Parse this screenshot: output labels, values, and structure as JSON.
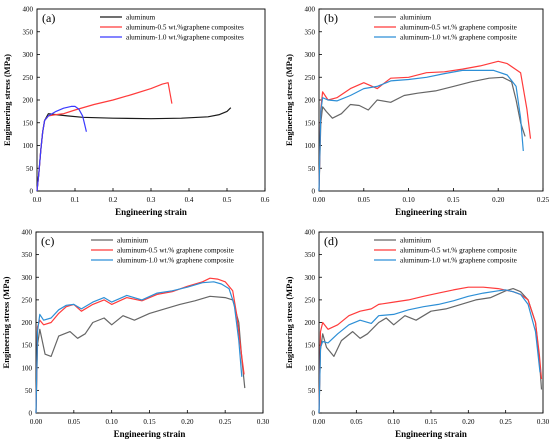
{
  "colors": {
    "black": "#1a1a1a",
    "gray": "#666666",
    "red": "#ff3b3b",
    "blue": "#3a3aff",
    "cyan": "#2d8fd6"
  },
  "chart_data": [
    {
      "type": "line",
      "panel_label": "(a)",
      "xlabel": "Engineering strain",
      "ylabel": "Engineering stress (MPa)",
      "xlim": [
        0,
        0.6
      ],
      "ylim": [
        0,
        400
      ],
      "xticks": [
        0,
        0.1,
        0.2,
        0.3,
        0.4,
        0.5,
        0.6
      ],
      "yticks": [
        0,
        50,
        100,
        150,
        200,
        250,
        300,
        350,
        400
      ],
      "xtick_labels": [
        "0.0",
        "0.1",
        "0.2",
        "0.3",
        "0.4",
        "0.5",
        "0.6"
      ],
      "ytick_labels": [
        "0",
        "50",
        "100",
        "150",
        "200",
        "250",
        "300",
        "350",
        "400"
      ],
      "legend_position": "top-center",
      "series": [
        {
          "name": "aluminum",
          "color": "#1a1a1a",
          "x": [
            0,
            0.005,
            0.01,
            0.015,
            0.02,
            0.03,
            0.05,
            0.08,
            0.12,
            0.2,
            0.3,
            0.38,
            0.45,
            0.48,
            0.5,
            0.51
          ],
          "y": [
            0,
            40,
            90,
            130,
            155,
            170,
            168,
            165,
            162,
            160,
            159,
            160,
            163,
            168,
            175,
            183
          ]
        },
        {
          "name": "aluminum-0.5 wt.%graphene composites",
          "color": "#ff3b3b",
          "x": [
            0,
            0.005,
            0.01,
            0.015,
            0.02,
            0.03,
            0.05,
            0.07,
            0.1,
            0.15,
            0.2,
            0.25,
            0.3,
            0.33,
            0.345,
            0.35,
            0.355
          ],
          "y": [
            0,
            40,
            90,
            130,
            155,
            165,
            168,
            170,
            178,
            190,
            200,
            212,
            225,
            235,
            238,
            215,
            192
          ]
        },
        {
          "name": "aluminum-1.0 wt.%graphene composites",
          "color": "#3a3aff",
          "x": [
            0,
            0.005,
            0.01,
            0.015,
            0.02,
            0.03,
            0.05,
            0.07,
            0.09,
            0.1,
            0.11,
            0.12,
            0.125,
            0.13
          ],
          "y": [
            0,
            40,
            90,
            130,
            155,
            165,
            175,
            182,
            186,
            186,
            180,
            165,
            148,
            130
          ]
        }
      ]
    },
    {
      "type": "line",
      "panel_label": "(b)",
      "xlabel": "Engineering strain",
      "ylabel": "Engineering stress (MPa)",
      "xlim": [
        0,
        0.25
      ],
      "ylim": [
        0,
        400
      ],
      "xticks": [
        0,
        0.05,
        0.1,
        0.15,
        0.2,
        0.25
      ],
      "yticks": [
        0,
        50,
        100,
        150,
        200,
        250,
        300,
        350,
        400
      ],
      "xtick_labels": [
        "0.00",
        "0.05",
        "0.10",
        "0.15",
        "0.20",
        "0.25"
      ],
      "ytick_labels": [
        "0",
        "50",
        "100",
        "150",
        "200",
        "250",
        "300",
        "350",
        "400"
      ],
      "legend_position": "top-center",
      "series": [
        {
          "name": "aluminium",
          "color": "#666666",
          "x": [
            0,
            0.002,
            0.004,
            0.008,
            0.015,
            0.025,
            0.035,
            0.045,
            0.055,
            0.065,
            0.08,
            0.095,
            0.11,
            0.13,
            0.15,
            0.17,
            0.19,
            0.205,
            0.215,
            0.22,
            0.225,
            0.23
          ],
          "y": [
            0,
            150,
            185,
            175,
            160,
            170,
            190,
            188,
            178,
            200,
            195,
            210,
            215,
            220,
            230,
            240,
            248,
            250,
            240,
            200,
            150,
            120
          ]
        },
        {
          "name": "aluminum-0.5 wt.% graphene composite",
          "color": "#ff3b3b",
          "x": [
            0,
            0.002,
            0.004,
            0.01,
            0.02,
            0.035,
            0.05,
            0.065,
            0.08,
            0.1,
            0.12,
            0.14,
            0.16,
            0.18,
            0.2,
            0.21,
            0.225,
            0.232,
            0.236
          ],
          "y": [
            0,
            180,
            218,
            200,
            205,
            225,
            238,
            225,
            248,
            250,
            260,
            262,
            268,
            275,
            285,
            280,
            260,
            180,
            115
          ]
        },
        {
          "name": "aluminum-1.0 wt.% graphene composite",
          "color": "#2d8fd6",
          "x": [
            0,
            0.002,
            0.004,
            0.01,
            0.02,
            0.035,
            0.05,
            0.065,
            0.08,
            0.1,
            0.12,
            0.14,
            0.16,
            0.18,
            0.195,
            0.21,
            0.22,
            0.225,
            0.228
          ],
          "y": [
            0,
            175,
            205,
            200,
            198,
            210,
            225,
            230,
            242,
            245,
            250,
            258,
            265,
            265,
            265,
            255,
            230,
            160,
            88
          ]
        }
      ]
    },
    {
      "type": "line",
      "panel_label": "(c)",
      "xlabel": "Engineering strain",
      "ylabel": "Engineering stress (MPa)",
      "xlim": [
        0,
        0.3
      ],
      "ylim": [
        0,
        400
      ],
      "xticks": [
        0,
        0.05,
        0.1,
        0.15,
        0.2,
        0.25,
        0.3
      ],
      "yticks": [
        0,
        50,
        100,
        150,
        200,
        250,
        300,
        350,
        400
      ],
      "xtick_labels": [
        "0.00",
        "0.05",
        "0.10",
        "0.15",
        "0.20",
        "0.25",
        "0.30"
      ],
      "ytick_labels": [
        "0",
        "50",
        "100",
        "150",
        "200",
        "250",
        "300",
        "350",
        "400"
      ],
      "legend_position": "top-center",
      "series": [
        {
          "name": "aluminium",
          "color": "#666666",
          "x": [
            0,
            0.002,
            0.005,
            0.012,
            0.02,
            0.03,
            0.045,
            0.055,
            0.065,
            0.075,
            0.09,
            0.1,
            0.115,
            0.13,
            0.15,
            0.17,
            0.19,
            0.21,
            0.23,
            0.25,
            0.26,
            0.268,
            0.272,
            0.276
          ],
          "y": [
            0,
            150,
            185,
            130,
            125,
            170,
            180,
            165,
            175,
            200,
            210,
            195,
            215,
            205,
            220,
            230,
            240,
            248,
            258,
            255,
            250,
            200,
            120,
            55
          ]
        },
        {
          "name": "aluminum-0.5 wt.% graphene composite",
          "color": "#ff3b3b",
          "x": [
            0,
            0.002,
            0.005,
            0.01,
            0.02,
            0.03,
            0.04,
            0.05,
            0.06,
            0.075,
            0.09,
            0.1,
            0.12,
            0.14,
            0.16,
            0.18,
            0.2,
            0.22,
            0.23,
            0.24,
            0.25,
            0.26,
            0.265,
            0.27,
            0.275
          ],
          "y": [
            0,
            190,
            205,
            195,
            200,
            220,
            235,
            240,
            225,
            240,
            250,
            240,
            255,
            248,
            262,
            268,
            280,
            290,
            298,
            296,
            290,
            270,
            220,
            150,
            85
          ]
        },
        {
          "name": "aluminum-1.0 wt.% graphene composite",
          "color": "#2d8fd6",
          "x": [
            0,
            0.002,
            0.005,
            0.01,
            0.02,
            0.03,
            0.04,
            0.05,
            0.06,
            0.075,
            0.09,
            0.1,
            0.12,
            0.14,
            0.16,
            0.18,
            0.2,
            0.22,
            0.235,
            0.245,
            0.255,
            0.262,
            0.268,
            0.272
          ],
          "y": [
            0,
            180,
            218,
            205,
            210,
            228,
            238,
            240,
            230,
            245,
            255,
            245,
            260,
            250,
            265,
            270,
            278,
            288,
            290,
            285,
            275,
            240,
            160,
            80
          ]
        }
      ]
    },
    {
      "type": "line",
      "panel_label": "(d)",
      "xlabel": "Engineering strain",
      "ylabel": "Engineering stress (MPa)",
      "xlim": [
        0,
        0.3
      ],
      "ylim": [
        0,
        400
      ],
      "xticks": [
        0,
        0.05,
        0.1,
        0.15,
        0.2,
        0.25,
        0.3
      ],
      "yticks": [
        0,
        50,
        100,
        150,
        200,
        250,
        300,
        350,
        400
      ],
      "xtick_labels": [
        "0.00",
        "0.05",
        "0.10",
        "0.15",
        "0.20",
        "0.25",
        "0.30"
      ],
      "ytick_labels": [
        "0",
        "50",
        "100",
        "150",
        "200",
        "250",
        "300",
        "350",
        "400"
      ],
      "legend_position": "top-center",
      "series": [
        {
          "name": "aluminium",
          "color": "#666666",
          "x": [
            0,
            0.002,
            0.005,
            0.01,
            0.02,
            0.03,
            0.045,
            0.055,
            0.065,
            0.08,
            0.09,
            0.1,
            0.115,
            0.13,
            0.15,
            0.17,
            0.19,
            0.21,
            0.23,
            0.25,
            0.26,
            0.27,
            0.28,
            0.29,
            0.295,
            0.298
          ],
          "y": [
            0,
            140,
            175,
            145,
            125,
            160,
            180,
            165,
            175,
            200,
            210,
            195,
            215,
            205,
            225,
            230,
            240,
            250,
            255,
            270,
            275,
            268,
            250,
            200,
            120,
            52
          ]
        },
        {
          "name": "aluminum-0.5 wt.% graphene composite",
          "color": "#ff3b3b",
          "x": [
            0,
            0.002,
            0.005,
            0.012,
            0.025,
            0.04,
            0.055,
            0.07,
            0.08,
            0.1,
            0.12,
            0.14,
            0.16,
            0.18,
            0.2,
            0.22,
            0.24,
            0.26,
            0.27,
            0.28,
            0.29,
            0.295,
            0.298
          ],
          "y": [
            0,
            180,
            200,
            185,
            195,
            215,
            225,
            230,
            240,
            245,
            250,
            258,
            265,
            272,
            278,
            278,
            275,
            268,
            262,
            250,
            200,
            130,
            75
          ]
        },
        {
          "name": "aluminum-1.0 wt.% graphene composite",
          "color": "#2d8fd6",
          "x": [
            0,
            0.002,
            0.005,
            0.012,
            0.025,
            0.04,
            0.055,
            0.07,
            0.08,
            0.1,
            0.12,
            0.14,
            0.16,
            0.18,
            0.2,
            0.22,
            0.24,
            0.25,
            0.26,
            0.27,
            0.28,
            0.29,
            0.296
          ],
          "y": [
            0,
            145,
            158,
            155,
            175,
            195,
            205,
            198,
            215,
            218,
            228,
            235,
            240,
            248,
            258,
            265,
            270,
            272,
            268,
            262,
            240,
            180,
            90
          ]
        }
      ]
    }
  ]
}
